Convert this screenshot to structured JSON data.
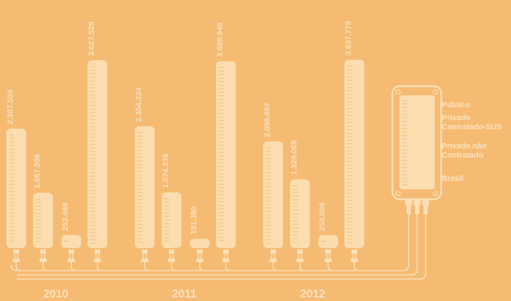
{
  "colors": {
    "background": "#F6BB73",
    "bar": "#FBDDAF",
    "notch": "#F1C38A",
    "label": "#FCE2BE",
    "wire": "#FBE0B6"
  },
  "chart_data": {
    "type": "bar",
    "categories": [
      "2010",
      "2011",
      "2012"
    ],
    "ylim": [
      0,
      3700000
    ],
    "series": [
      {
        "name": "Público",
        "values": [
          2307504,
          2354224,
          2058697
        ],
        "labels": [
          "2.307.504",
          "2.354.224",
          "2.058.697"
        ]
      },
      {
        "name": "Privado Contratado-SUS",
        "values": [
          1067556,
          1074336,
          1329069
        ],
        "labels": [
          "1.067.556",
          "1.074.336",
          "1.329.069"
        ]
      },
      {
        "name": "Privado não Contratado",
        "values": [
          252469,
          181380,
          250009
        ],
        "labels": [
          "252.469",
          "181.380",
          "250.009"
        ]
      },
      {
        "name": "Brasil",
        "values": [
          3627529,
          3609940,
          3637775
        ],
        "labels": [
          "3.627.529",
          "3.609.940",
          "3.637.775"
        ]
      }
    ],
    "legend": {
      "placement": "right",
      "entries": [
        [
          "Público"
        ],
        [
          "Privado",
          "Contratado-SUS"
        ],
        [
          "Privado não",
          "Contratado"
        ],
        [
          "Brasil"
        ]
      ]
    }
  }
}
